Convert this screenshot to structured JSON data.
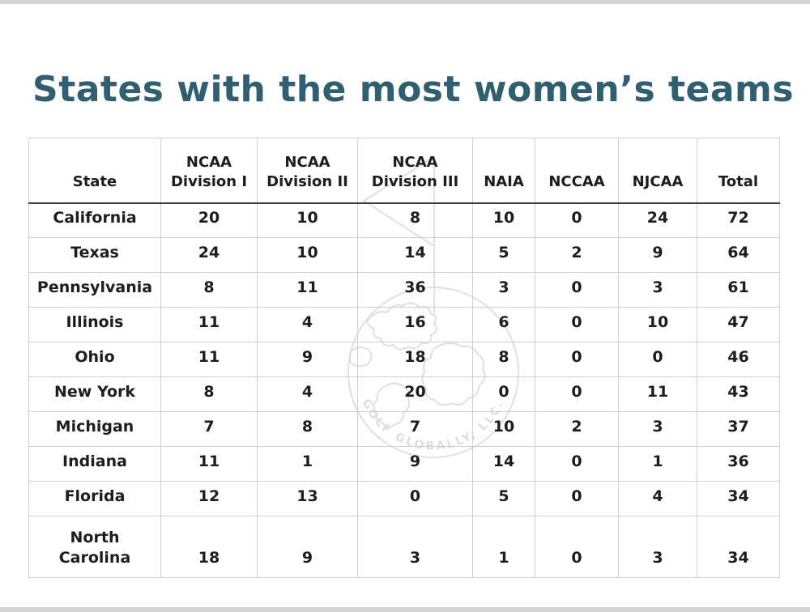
{
  "page": {
    "title": "States with the most women’s teams"
  },
  "watermark": {
    "text": "GOLF GLOBALLY, LLC."
  },
  "table": {
    "columns": [
      {
        "id": "state",
        "lines": [
          "State"
        ]
      },
      {
        "id": "ncaa-division-1",
        "lines": [
          "NCAA",
          "Division I"
        ]
      },
      {
        "id": "ncaa-division-2",
        "lines": [
          "NCAA",
          "Division II"
        ]
      },
      {
        "id": "ncaa-division-3",
        "lines": [
          "NCAA",
          "Division III"
        ]
      },
      {
        "id": "naia",
        "lines": [
          "NAIA"
        ]
      },
      {
        "id": "nccaa",
        "lines": [
          "NCCAA"
        ]
      },
      {
        "id": "njcaa",
        "lines": [
          "NJCAA"
        ]
      },
      {
        "id": "total",
        "lines": [
          "Total"
        ]
      }
    ],
    "rows": [
      {
        "cells": [
          "California",
          "20",
          "10",
          "8",
          "10",
          "0",
          "24",
          "72"
        ]
      },
      {
        "cells": [
          "Texas",
          "24",
          "10",
          "14",
          "5",
          "2",
          "9",
          "64"
        ]
      },
      {
        "cells": [
          "Pennsylvania",
          "8",
          "11",
          "36",
          "3",
          "0",
          "3",
          "61"
        ]
      },
      {
        "cells": [
          "Illinois",
          "11",
          "4",
          "16",
          "6",
          "0",
          "10",
          "47"
        ]
      },
      {
        "cells": [
          "Ohio",
          "11",
          "9",
          "18",
          "8",
          "0",
          "0",
          "46"
        ]
      },
      {
        "cells": [
          "New York",
          "8",
          "4",
          "20",
          "0",
          "0",
          "11",
          "43"
        ]
      },
      {
        "cells": [
          "Michigan",
          "7",
          "8",
          "7",
          "10",
          "2",
          "3",
          "37"
        ]
      },
      {
        "cells": [
          "Indiana",
          "11",
          "1",
          "9",
          "14",
          "0",
          "1",
          "36"
        ]
      },
      {
        "cells": [
          "Florida",
          "12",
          "13",
          "0",
          "5",
          "0",
          "4",
          "34"
        ]
      },
      {
        "cells": [
          "North\nCarolina",
          "18",
          "9",
          "3",
          "1",
          "0",
          "3",
          "34"
        ]
      }
    ]
  },
  "colors": {
    "title": "#2f5f70",
    "grid_border": "#cfcfcf",
    "header_rule": "#3d3d3d",
    "text": "#1d1d1d",
    "watermark": "#e0e0e0",
    "edge_bars": "#d4d4d4"
  },
  "chart_data": {
    "type": "table",
    "title": "States with the most women’s teams",
    "columns": [
      "State",
      "NCAA Division I",
      "NCAA Division II",
      "NCAA Division III",
      "NAIA",
      "NCCAA",
      "NJCAA",
      "Total"
    ],
    "rows": [
      [
        "California",
        20,
        10,
        8,
        10,
        0,
        24,
        72
      ],
      [
        "Texas",
        24,
        10,
        14,
        5,
        2,
        9,
        64
      ],
      [
        "Pennsylvania",
        8,
        11,
        36,
        3,
        0,
        3,
        61
      ],
      [
        "Illinois",
        11,
        4,
        16,
        6,
        0,
        10,
        47
      ],
      [
        "Ohio",
        11,
        9,
        18,
        8,
        0,
        0,
        46
      ],
      [
        "New York",
        8,
        4,
        20,
        0,
        0,
        11,
        43
      ],
      [
        "Michigan",
        7,
        8,
        7,
        10,
        2,
        3,
        37
      ],
      [
        "Indiana",
        11,
        1,
        9,
        14,
        0,
        1,
        36
      ],
      [
        "Florida",
        12,
        13,
        0,
        5,
        0,
        4,
        34
      ],
      [
        "North Carolina",
        18,
        9,
        3,
        1,
        0,
        3,
        34
      ]
    ]
  }
}
